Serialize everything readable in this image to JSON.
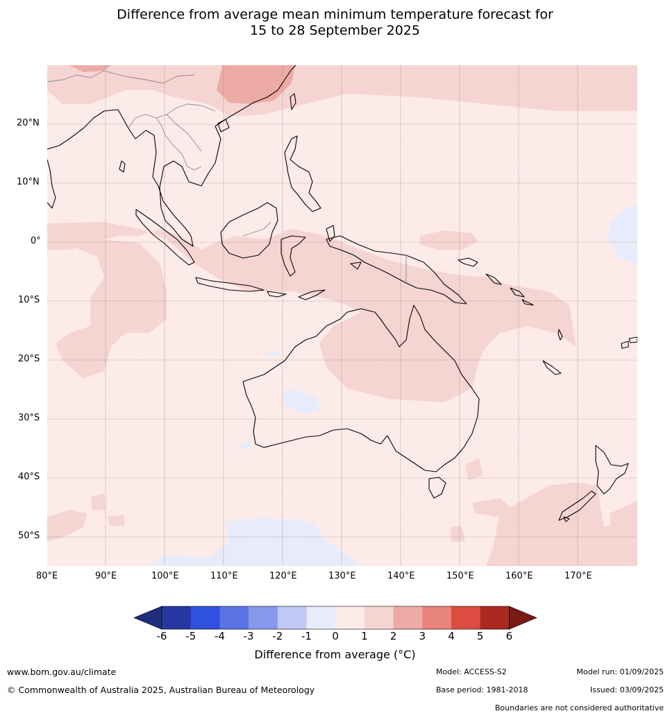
{
  "title_line1": "Difference from average mean minimum temperature forecast for",
  "title_line2": "15 to 28 September 2025",
  "lat_labels": [
    "20°N",
    "10°N",
    "0°",
    "10°S",
    "20°S",
    "30°S",
    "40°S",
    "50°S"
  ],
  "lon_labels": [
    "80°E",
    "90°E",
    "100°E",
    "110°E",
    "120°E",
    "130°E",
    "140°E",
    "150°E",
    "160°E",
    "170°E"
  ],
  "colorbar": {
    "ticks": [
      "-6",
      "-5",
      "-4",
      "-3",
      "-2",
      "-1",
      "0",
      "1",
      "2",
      "3",
      "4",
      "5",
      "6"
    ],
    "colors": [
      "#26389f",
      "#3050e0",
      "#5a74e6",
      "#8899ec",
      "#c0c8f4",
      "#e8ecfa",
      "#fdebe9",
      "#f5d5d2",
      "#edaba6",
      "#e8847c",
      "#dc4c40",
      "#aa2a20"
    ],
    "under_color": "#1f2d7a",
    "over_color": "#7a1a15",
    "label": "Difference from average (°C)"
  },
  "footer": {
    "website": "www.bom.gov.au/climate",
    "copyright": "© Commonwealth of Australia 2025, Australian Bureau of Meteorology",
    "model": "Model: ACCESS-S2",
    "base_period": "Base period: 1981-2018",
    "model_run": "Model run: 01/09/2025",
    "issued": "Issued: 03/09/2025",
    "disclaimer": "Boundaries are not considered authoritative"
  }
}
